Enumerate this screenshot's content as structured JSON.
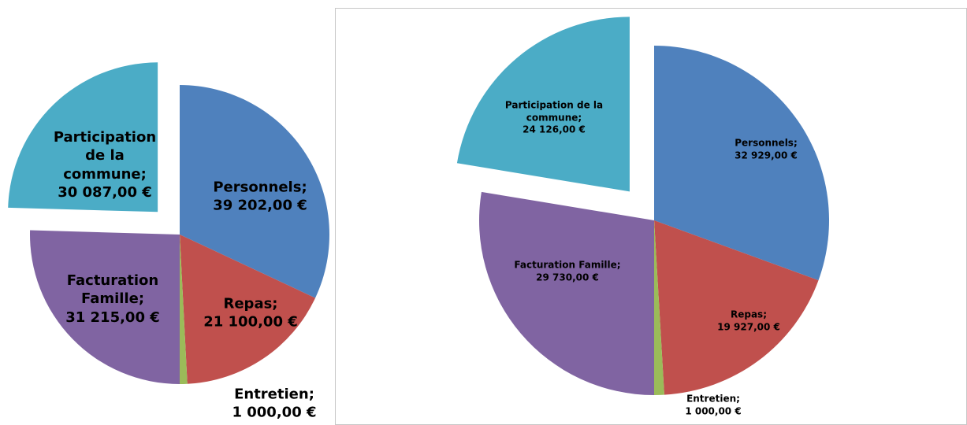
{
  "chart_data": [
    {
      "type": "pie",
      "categories": [
        "Personnels;",
        "Repas;",
        "Entretien;",
        "Facturation Famille;",
        "Participation de la commune;"
      ],
      "values": [
        39202,
        21100,
        1000,
        31215,
        30087
      ],
      "value_labels": [
        "39 202,00 €",
        "21 100,00 €",
        "1 000,00 €",
        "31 215,00 €",
        "30 087,00 €"
      ],
      "colors": [
        "#4f81bd",
        "#c0504d",
        "#9bbb59",
        "#8064a2",
        "#4bacc6"
      ]
    },
    {
      "type": "pie",
      "categories": [
        "Personnels;",
        "Repas;",
        "Entretien;",
        "Facturation Famille;",
        "Participation de la commune;"
      ],
      "values": [
        32929,
        19927,
        1000,
        29730,
        24126
      ],
      "value_labels": [
        "32 929,00 €",
        "19 927,00 €",
        "1 000,00 €",
        "29 730,00 €",
        "24 126,00 €"
      ],
      "colors": [
        "#4f81bd",
        "#c0504d",
        "#9bbb59",
        "#8064a2",
        "#4bacc6"
      ]
    }
  ]
}
